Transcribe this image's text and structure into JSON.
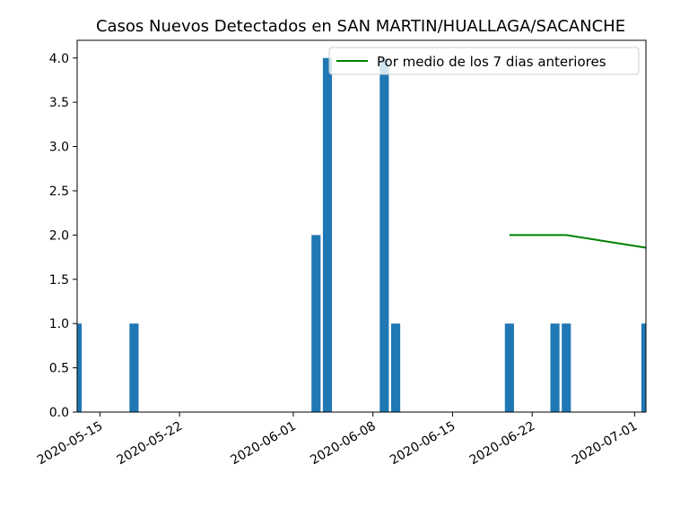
{
  "chart_data": {
    "type": "bar",
    "title": "Casos Nuevos Detectados en SAN MARTIN/HUALLAGA/SACANCHE",
    "xlabel": "",
    "ylabel": "",
    "ylim": [
      0,
      4.2
    ],
    "xlim": [
      "2020-05-13",
      "2020-07-02"
    ],
    "yticks": [
      "0.0",
      "0.5",
      "1.0",
      "1.5",
      "2.0",
      "2.5",
      "3.0",
      "3.5",
      "4.0"
    ],
    "xticks": [
      "2020-05-15",
      "2020-05-22",
      "2020-06-01",
      "2020-06-08",
      "2020-06-15",
      "2020-06-22",
      "2020-07-01"
    ],
    "bar_color": "#1f77b4",
    "line_color": "#008000",
    "grid": false,
    "legend_position": "top-right",
    "series": [
      {
        "kind": "bar",
        "points": [
          {
            "x": "2020-05-13",
            "y": 1
          },
          {
            "x": "2020-05-18",
            "y": 1
          },
          {
            "x": "2020-06-03",
            "y": 2
          },
          {
            "x": "2020-06-04",
            "y": 4
          },
          {
            "x": "2020-06-09",
            "y": 4
          },
          {
            "x": "2020-06-10",
            "y": 1
          },
          {
            "x": "2020-06-20",
            "y": 1
          },
          {
            "x": "2020-06-24",
            "y": 1
          },
          {
            "x": "2020-06-25",
            "y": 1
          },
          {
            "x": "2020-07-02",
            "y": 1
          }
        ]
      },
      {
        "kind": "line",
        "name": "Por medio de los 7 dias anteriores",
        "points": [
          {
            "x": "2020-06-20",
            "y": 2.0
          },
          {
            "x": "2020-06-25",
            "y": 2.0
          },
          {
            "x": "2020-07-02",
            "y": 1.857
          }
        ]
      }
    ]
  }
}
